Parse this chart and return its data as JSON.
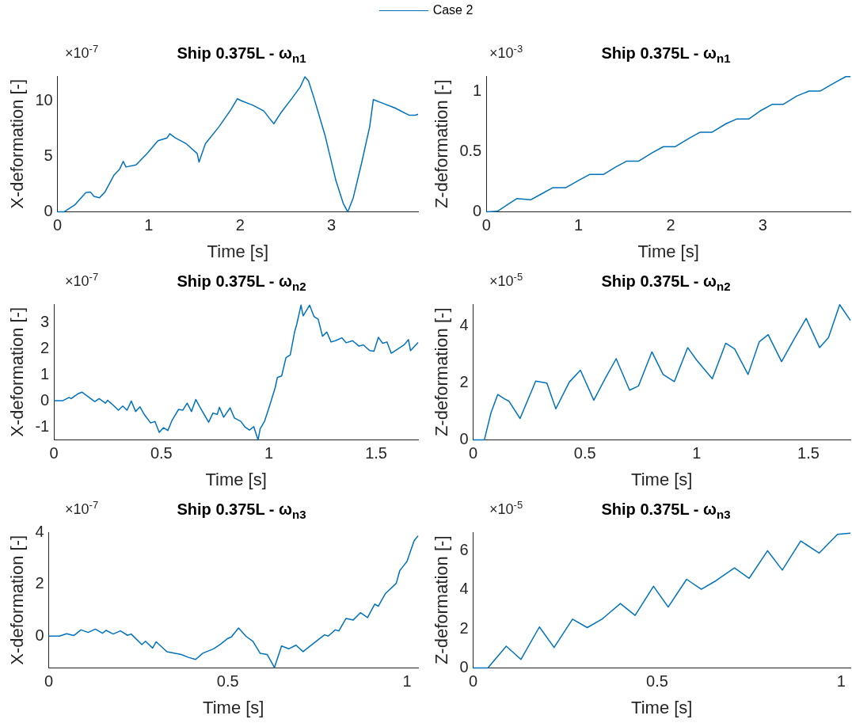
{
  "chart_data": [
    {
      "type": "line",
      "title": "Ship 0.375L - ω$_{n1}$",
      "xlabel": "Time [s]",
      "ylabel": "X-deformation [-]",
      "annotations": [
        "×10$^{-7}$"
      ],
      "legend": "top",
      "marker": "none",
      "xlim": [
        0,
        3.95
      ],
      "ylim": [
        0,
        12.25
      ],
      "xticks": [
        0,
        1,
        2,
        3
      ],
      "yticks": [
        0,
        5,
        10
      ],
      "x": [
        0,
        0.07,
        0.19,
        0.31,
        0.36,
        0.4,
        0.46,
        0.52,
        0.62,
        0.68,
        0.72,
        0.75,
        0.86,
        0.98,
        1.1,
        1.2,
        1.23,
        1.29,
        1.41,
        1.53,
        1.55,
        1.62,
        1.77,
        1.9,
        1.97,
        2.02,
        2.14,
        2.26,
        2.32,
        2.37,
        2.45,
        2.57,
        2.66,
        2.71,
        2.75,
        2.81,
        2.93,
        3.05,
        3.13,
        3.18,
        3.24,
        3.33,
        3.42,
        3.46,
        3.54,
        3.7,
        3.85,
        3.92,
        3.95
      ],
      "series": [
        {
          "name": "Case 2",
          "color": "#0072bd",
          "values": [
            0,
            0,
            0.64,
            1.74,
            1.8,
            1.4,
            1.28,
            1.8,
            3.33,
            3.85,
            4.56,
            4.05,
            4.23,
            5.26,
            6.41,
            6.67,
            7.05,
            6.67,
            6.15,
            5.26,
            4.49,
            6.15,
            7.69,
            9.23,
            10.2,
            10.0,
            9.62,
            9.1,
            8.46,
            7.95,
            8.97,
            10.26,
            11.28,
            12.18,
            11.8,
            10.26,
            6.92,
            2.82,
            0.77,
            0,
            1.28,
            4.36,
            7.69,
            10.13,
            9.87,
            9.36,
            8.72,
            8.72,
            8.8
          ]
        }
      ]
    },
    {
      "type": "line",
      "title": "Ship 0.375L - ω$_{n1}$",
      "xlabel": "Time [s]",
      "ylabel": "Z-deformation [-]",
      "annotations": [
        "×10$^{-3}$"
      ],
      "marker": "none",
      "xlim": [
        0,
        3.95
      ],
      "ylim": [
        0,
        1.125
      ],
      "xticks": [
        0,
        1,
        2,
        3
      ],
      "yticks": [
        0,
        0.5,
        1
      ],
      "x": [
        0,
        0.12,
        0.25,
        0.33,
        0.48,
        0.6,
        0.72,
        0.86,
        1.0,
        1.12,
        1.27,
        1.4,
        1.52,
        1.65,
        1.8,
        1.92,
        2.05,
        2.2,
        2.32,
        2.45,
        2.6,
        2.72,
        2.85,
        2.98,
        3.1,
        3.22,
        3.37,
        3.5,
        3.62,
        3.78,
        3.9,
        3.95
      ],
      "series": [
        {
          "color": "#0072bd",
          "values": [
            0,
            0.005,
            0.07,
            0.11,
            0.1,
            0.15,
            0.2,
            0.2,
            0.26,
            0.31,
            0.31,
            0.37,
            0.42,
            0.42,
            0.49,
            0.54,
            0.54,
            0.61,
            0.66,
            0.66,
            0.73,
            0.77,
            0.77,
            0.84,
            0.89,
            0.89,
            0.96,
            1.0,
            1.0,
            1.07,
            1.12,
            1.12
          ]
        }
      ]
    },
    {
      "type": "line",
      "title": "Ship 0.375L - ω$_{n2}$",
      "xlabel": "Time [s]",
      "ylabel": "X-deformation [-]",
      "annotations": [
        "×10$^{-7}$"
      ],
      "marker": "none",
      "xlim": [
        0,
        1.695
      ],
      "ylim": [
        -1.5,
        3.7
      ],
      "xticks": [
        0,
        0.5,
        1,
        1.5
      ],
      "yticks": [
        -1,
        0,
        1,
        2,
        3
      ],
      "x": [
        0,
        0.04,
        0.07,
        0.08,
        0.11,
        0.13,
        0.16,
        0.19,
        0.21,
        0.24,
        0.25,
        0.28,
        0.3,
        0.32,
        0.34,
        0.36,
        0.38,
        0.4,
        0.42,
        0.45,
        0.47,
        0.49,
        0.51,
        0.53,
        0.55,
        0.58,
        0.6,
        0.62,
        0.64,
        0.66,
        0.68,
        0.72,
        0.74,
        0.76,
        0.77,
        0.79,
        0.82,
        0.84,
        0.87,
        0.89,
        0.91,
        0.93,
        0.95,
        0.96,
        0.98,
        1.01,
        1.03,
        1.04,
        1.06,
        1.08,
        1.1,
        1.12,
        1.13,
        1.15,
        1.16,
        1.19,
        1.21,
        1.23,
        1.25,
        1.27,
        1.29,
        1.31,
        1.34,
        1.36,
        1.39,
        1.42,
        1.44,
        1.47,
        1.49,
        1.51,
        1.53,
        1.55,
        1.57,
        1.6,
        1.63,
        1.65,
        1.66,
        1.695
      ],
      "series": [
        {
          "color": "#0072bd",
          "values": [
            0,
            0,
            0.13,
            0.08,
            0.26,
            0.33,
            0.15,
            -0.03,
            0.08,
            -0.09,
            0.02,
            -0.2,
            -0.36,
            -0.2,
            -0.36,
            -0.01,
            -0.41,
            -0.23,
            -0.52,
            -0.85,
            -0.79,
            -1.21,
            -1.03,
            -1.14,
            -0.74,
            -0.33,
            -0.36,
            -0.09,
            -0.41,
            0.05,
            -0.25,
            -0.82,
            -0.47,
            -0.52,
            -0.25,
            -0.63,
            -0.27,
            -0.66,
            -0.79,
            -1.01,
            -1.12,
            -0.99,
            -1.5,
            -1.07,
            -0.79,
            -0.03,
            0.51,
            0.89,
            0.95,
            1.65,
            1.76,
            2.63,
            2.92,
            3.66,
            3.25,
            3.66,
            3.23,
            3.12,
            2.47,
            2.63,
            2.25,
            2.3,
            2.41,
            2.22,
            2.3,
            2.09,
            2.14,
            1.92,
            1.9,
            2.43,
            2.2,
            2.25,
            1.82,
            1.98,
            2.14,
            2.34,
            1.92,
            2.23
          ]
        }
      ]
    },
    {
      "type": "line",
      "title": "Ship 0.375L - ω$_{n2}$",
      "xlabel": "Time [s]",
      "ylabel": "Z-deformation [-]",
      "annotations": [
        "×10$^{-5}$"
      ],
      "marker": "none",
      "xlim": [
        0,
        1.688
      ],
      "ylim": [
        0,
        4.75
      ],
      "xticks": [
        0,
        0.5,
        1,
        1.5
      ],
      "yticks": [
        0,
        2,
        4
      ],
      "x": [
        0,
        0.05,
        0.08,
        0.11,
        0.14,
        0.16,
        0.21,
        0.28,
        0.33,
        0.37,
        0.43,
        0.48,
        0.54,
        0.59,
        0.64,
        0.7,
        0.74,
        0.8,
        0.85,
        0.9,
        0.96,
        1.0,
        1.07,
        1.13,
        1.17,
        1.23,
        1.28,
        1.32,
        1.38,
        1.44,
        1.49,
        1.55,
        1.59,
        1.64,
        1.688
      ],
      "series": [
        {
          "color": "#0072bd",
          "values": [
            0,
            0,
            0.95,
            1.59,
            1.44,
            1.36,
            0.75,
            2.06,
            1.99,
            1.09,
            2.02,
            2.44,
            1.39,
            2.14,
            2.84,
            1.74,
            1.89,
            3.08,
            2.29,
            2.04,
            3.23,
            2.79,
            2.14,
            3.38,
            3.18,
            2.29,
            3.43,
            3.68,
            2.74,
            3.58,
            4.25,
            3.23,
            3.58,
            4.73,
            4.18
          ]
        }
      ]
    },
    {
      "type": "line",
      "title": "Ship 0.375L - ω$_{n3}$",
      "xlabel": "Time [s]",
      "ylabel": "X-deformation [-]",
      "annotations": [
        "×10$^{-7}$"
      ],
      "marker": "none",
      "xlim": [
        0,
        1.031
      ],
      "ylim": [
        -1.23,
        4
      ],
      "xticks": [
        0,
        0.5,
        1
      ],
      "yticks": [
        0,
        2,
        4
      ],
      "x": [
        0,
        0.03,
        0.05,
        0.07,
        0.09,
        0.11,
        0.13,
        0.15,
        0.16,
        0.18,
        0.2,
        0.22,
        0.23,
        0.26,
        0.27,
        0.29,
        0.3,
        0.33,
        0.37,
        0.39,
        0.41,
        0.43,
        0.46,
        0.48,
        0.5,
        0.51,
        0.53,
        0.55,
        0.57,
        0.59,
        0.61,
        0.63,
        0.65,
        0.67,
        0.69,
        0.71,
        0.74,
        0.77,
        0.78,
        0.8,
        0.81,
        0.83,
        0.85,
        0.87,
        0.89,
        0.91,
        0.92,
        0.94,
        0.97,
        0.98,
        1.0,
        1.02,
        1.031
      ],
      "series": [
        {
          "color": "#0072bd",
          "values": [
            0,
            0,
            0.09,
            0.02,
            0.24,
            0.14,
            0.27,
            0.11,
            0.22,
            0.08,
            0.2,
            0.03,
            0.08,
            -0.33,
            -0.2,
            -0.46,
            -0.22,
            -0.6,
            -0.71,
            -0.82,
            -0.9,
            -0.66,
            -0.49,
            -0.31,
            -0.09,
            -0.03,
            0.31,
            0,
            -0.2,
            -0.66,
            -0.71,
            -1.21,
            -0.38,
            -0.49,
            -0.35,
            -0.6,
            -0.27,
            0.05,
            0,
            0.24,
            0.2,
            0.68,
            0.62,
            0.9,
            0.71,
            1.23,
            1.15,
            1.64,
            2.03,
            2.52,
            2.87,
            3.67,
            3.86
          ]
        }
      ]
    },
    {
      "type": "line",
      "title": "Ship 0.375L - ω$_{n3}$",
      "xlabel": "Time [s]",
      "ylabel": "Z-deformation [-]",
      "annotations": [
        "×10$^{-5}$"
      ],
      "marker": "none",
      "xlim": [
        0,
        1.025
      ],
      "ylim": [
        0,
        6.95
      ],
      "xticks": [
        0,
        0.5,
        1
      ],
      "yticks": [
        0,
        2,
        4,
        6
      ],
      "x": [
        0,
        0.04,
        0.09,
        0.13,
        0.18,
        0.22,
        0.27,
        0.31,
        0.35,
        0.4,
        0.44,
        0.49,
        0.53,
        0.58,
        0.62,
        0.66,
        0.71,
        0.75,
        0.8,
        0.84,
        0.89,
        0.94,
        0.99,
        1.025
      ],
      "series": [
        {
          "color": "#0072bd",
          "values": [
            0,
            0,
            1.12,
            0.44,
            2.1,
            1.05,
            2.5,
            2.07,
            2.5,
            3.3,
            2.69,
            4.18,
            3.12,
            4.54,
            4.03,
            4.47,
            5.12,
            4.59,
            6.0,
            5.01,
            6.5,
            5.88,
            6.84,
            6.9
          ]
        }
      ]
    }
  ]
}
